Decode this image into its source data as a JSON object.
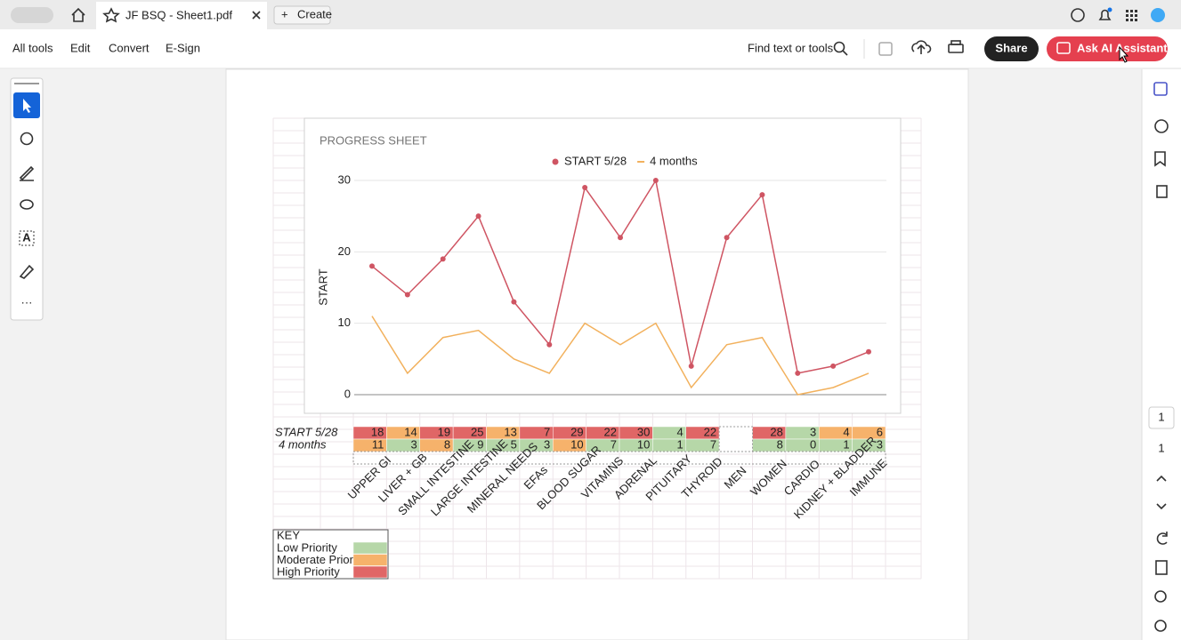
{
  "tab": {
    "title": "JF BSQ - Sheet1.pdf",
    "create": "Create"
  },
  "menu": [
    "All tools",
    "Edit",
    "Convert",
    "E-Sign"
  ],
  "toolbar": {
    "search": "Find text or tools",
    "share": "Share",
    "ai": "Ask AI Assistant"
  },
  "pages": {
    "current": "1",
    "total": "1"
  },
  "chart_data": {
    "type": "line",
    "title": "PROGRESS SHEET",
    "y_label": "START",
    "ylim": [
      0,
      30
    ],
    "yticks": [
      0,
      10,
      20,
      30
    ],
    "grid": true,
    "legend": "top",
    "series": [
      {
        "name": "START 5/28",
        "color": "#cf5563",
        "markers": true,
        "values": [
          18,
          14,
          19,
          25,
          13,
          7,
          29,
          22,
          30,
          4,
          22,
          28,
          3,
          4,
          6
        ]
      },
      {
        "name": "4 months",
        "color": "#f2b15d",
        "markers": false,
        "values": [
          11,
          3,
          8,
          9,
          5,
          3,
          10,
          7,
          10,
          1,
          7,
          8,
          0,
          1,
          3
        ]
      }
    ]
  },
  "table": {
    "row_labels": [
      "START 5/28",
      "4 months"
    ],
    "rows": [
      [
        18,
        14,
        19,
        25,
        13,
        7,
        29,
        22,
        30,
        4,
        22,
        null,
        28,
        3,
        4,
        6
      ],
      [
        11,
        3,
        8,
        9,
        5,
        3,
        10,
        7,
        10,
        1,
        7,
        null,
        8,
        0,
        1,
        3
      ]
    ],
    "colors": [
      [
        "#e06666",
        "#f6b26b",
        "#e06666",
        "#e06666",
        "#f6b26b",
        "#e06666",
        "#e06666",
        "#e06666",
        "#e06666",
        "#b6d7a8",
        "#e06666",
        "#ffffff",
        "#e06666",
        "#b6d7a8",
        "#f6b26b",
        "#f6b26b"
      ],
      [
        "#f6b26b",
        "#b6d7a8",
        "#f6b26b",
        "#b6d7a8",
        "#b6d7a8",
        "#b6d7a8",
        "#f6b26b",
        "#b6d7a8",
        "#b6d7a8",
        "#b6d7a8",
        "#b6d7a8",
        "#ffffff",
        "#b6d7a8",
        "#b6d7a8",
        "#b6d7a8",
        "#b6d7a8"
      ]
    ],
    "categories": [
      "UPPER GI",
      "LIVER + GB",
      "SMALL INTESTINE",
      "LARGE INTESTINE",
      "MINERAL NEEDS",
      "EFAs",
      "BLOOD SUGAR",
      "VITAMINS",
      "ADRENAL",
      "PITUITARY",
      "THYROID",
      "MEN",
      "WOMEN",
      "CARDIO",
      "KIDNEY + BLADDER",
      "IMMUNE"
    ]
  },
  "key": {
    "title": "KEY",
    "items": [
      {
        "label": "Low Priority",
        "color": "#b6d7a8"
      },
      {
        "label": "Moderate Priority",
        "color": "#f6b26b"
      },
      {
        "label": "High Priority",
        "color": "#e06666"
      }
    ]
  }
}
